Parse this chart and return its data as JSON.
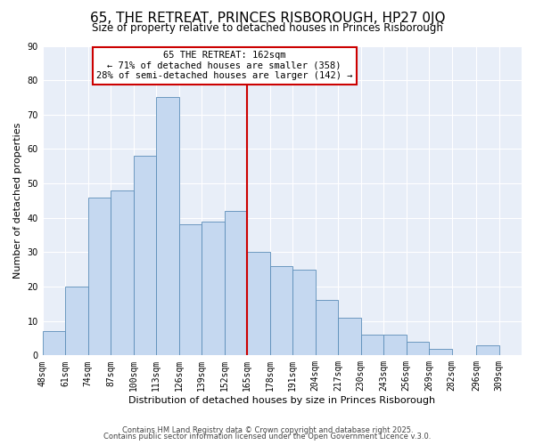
{
  "title": "65, THE RETREAT, PRINCES RISBOROUGH, HP27 0JQ",
  "subtitle": "Size of property relative to detached houses in Princes Risborough",
  "xlabel": "Distribution of detached houses by size in Princes Risborough",
  "ylabel": "Number of detached properties",
  "bin_labels": [
    "48sqm",
    "61sqm",
    "74sqm",
    "87sqm",
    "100sqm",
    "113sqm",
    "126sqm",
    "139sqm",
    "152sqm",
    "165sqm",
    "178sqm",
    "191sqm",
    "204sqm",
    "217sqm",
    "230sqm",
    "243sqm",
    "256sqm",
    "269sqm",
    "282sqm",
    "296sqm",
    "309sqm"
  ],
  "bin_edges": [
    48,
    61,
    74,
    87,
    100,
    113,
    126,
    139,
    152,
    165,
    178,
    191,
    204,
    217,
    230,
    243,
    256,
    269,
    282,
    296,
    309
  ],
  "counts": [
    7,
    20,
    46,
    48,
    58,
    75,
    38,
    39,
    42,
    30,
    26,
    25,
    16,
    11,
    6,
    6,
    4,
    2,
    0,
    3
  ],
  "bar_color": "#c5d8f0",
  "bar_edge_color": "#5b8db8",
  "vline_x": 165,
  "vline_color": "#cc0000",
  "annotation_line1": "65 THE RETREAT: 162sqm",
  "annotation_line2": "← 71% of detached houses are smaller (358)",
  "annotation_line3": "28% of semi-detached houses are larger (142) →",
  "annotation_box_color": "#cc0000",
  "annotation_fill": "white",
  "ylim": [
    0,
    90
  ],
  "yticks": [
    0,
    10,
    20,
    30,
    40,
    50,
    60,
    70,
    80,
    90
  ],
  "background_color": "#e8eef8",
  "footer1": "Contains HM Land Registry data © Crown copyright and database right 2025.",
  "footer2": "Contains public sector information licensed under the Open Government Licence v.3.0.",
  "title_fontsize": 11,
  "subtitle_fontsize": 8.5,
  "xlabel_fontsize": 8,
  "ylabel_fontsize": 8,
  "tick_fontsize": 7,
  "annotation_fontsize": 7.5,
  "footer_fontsize": 6
}
